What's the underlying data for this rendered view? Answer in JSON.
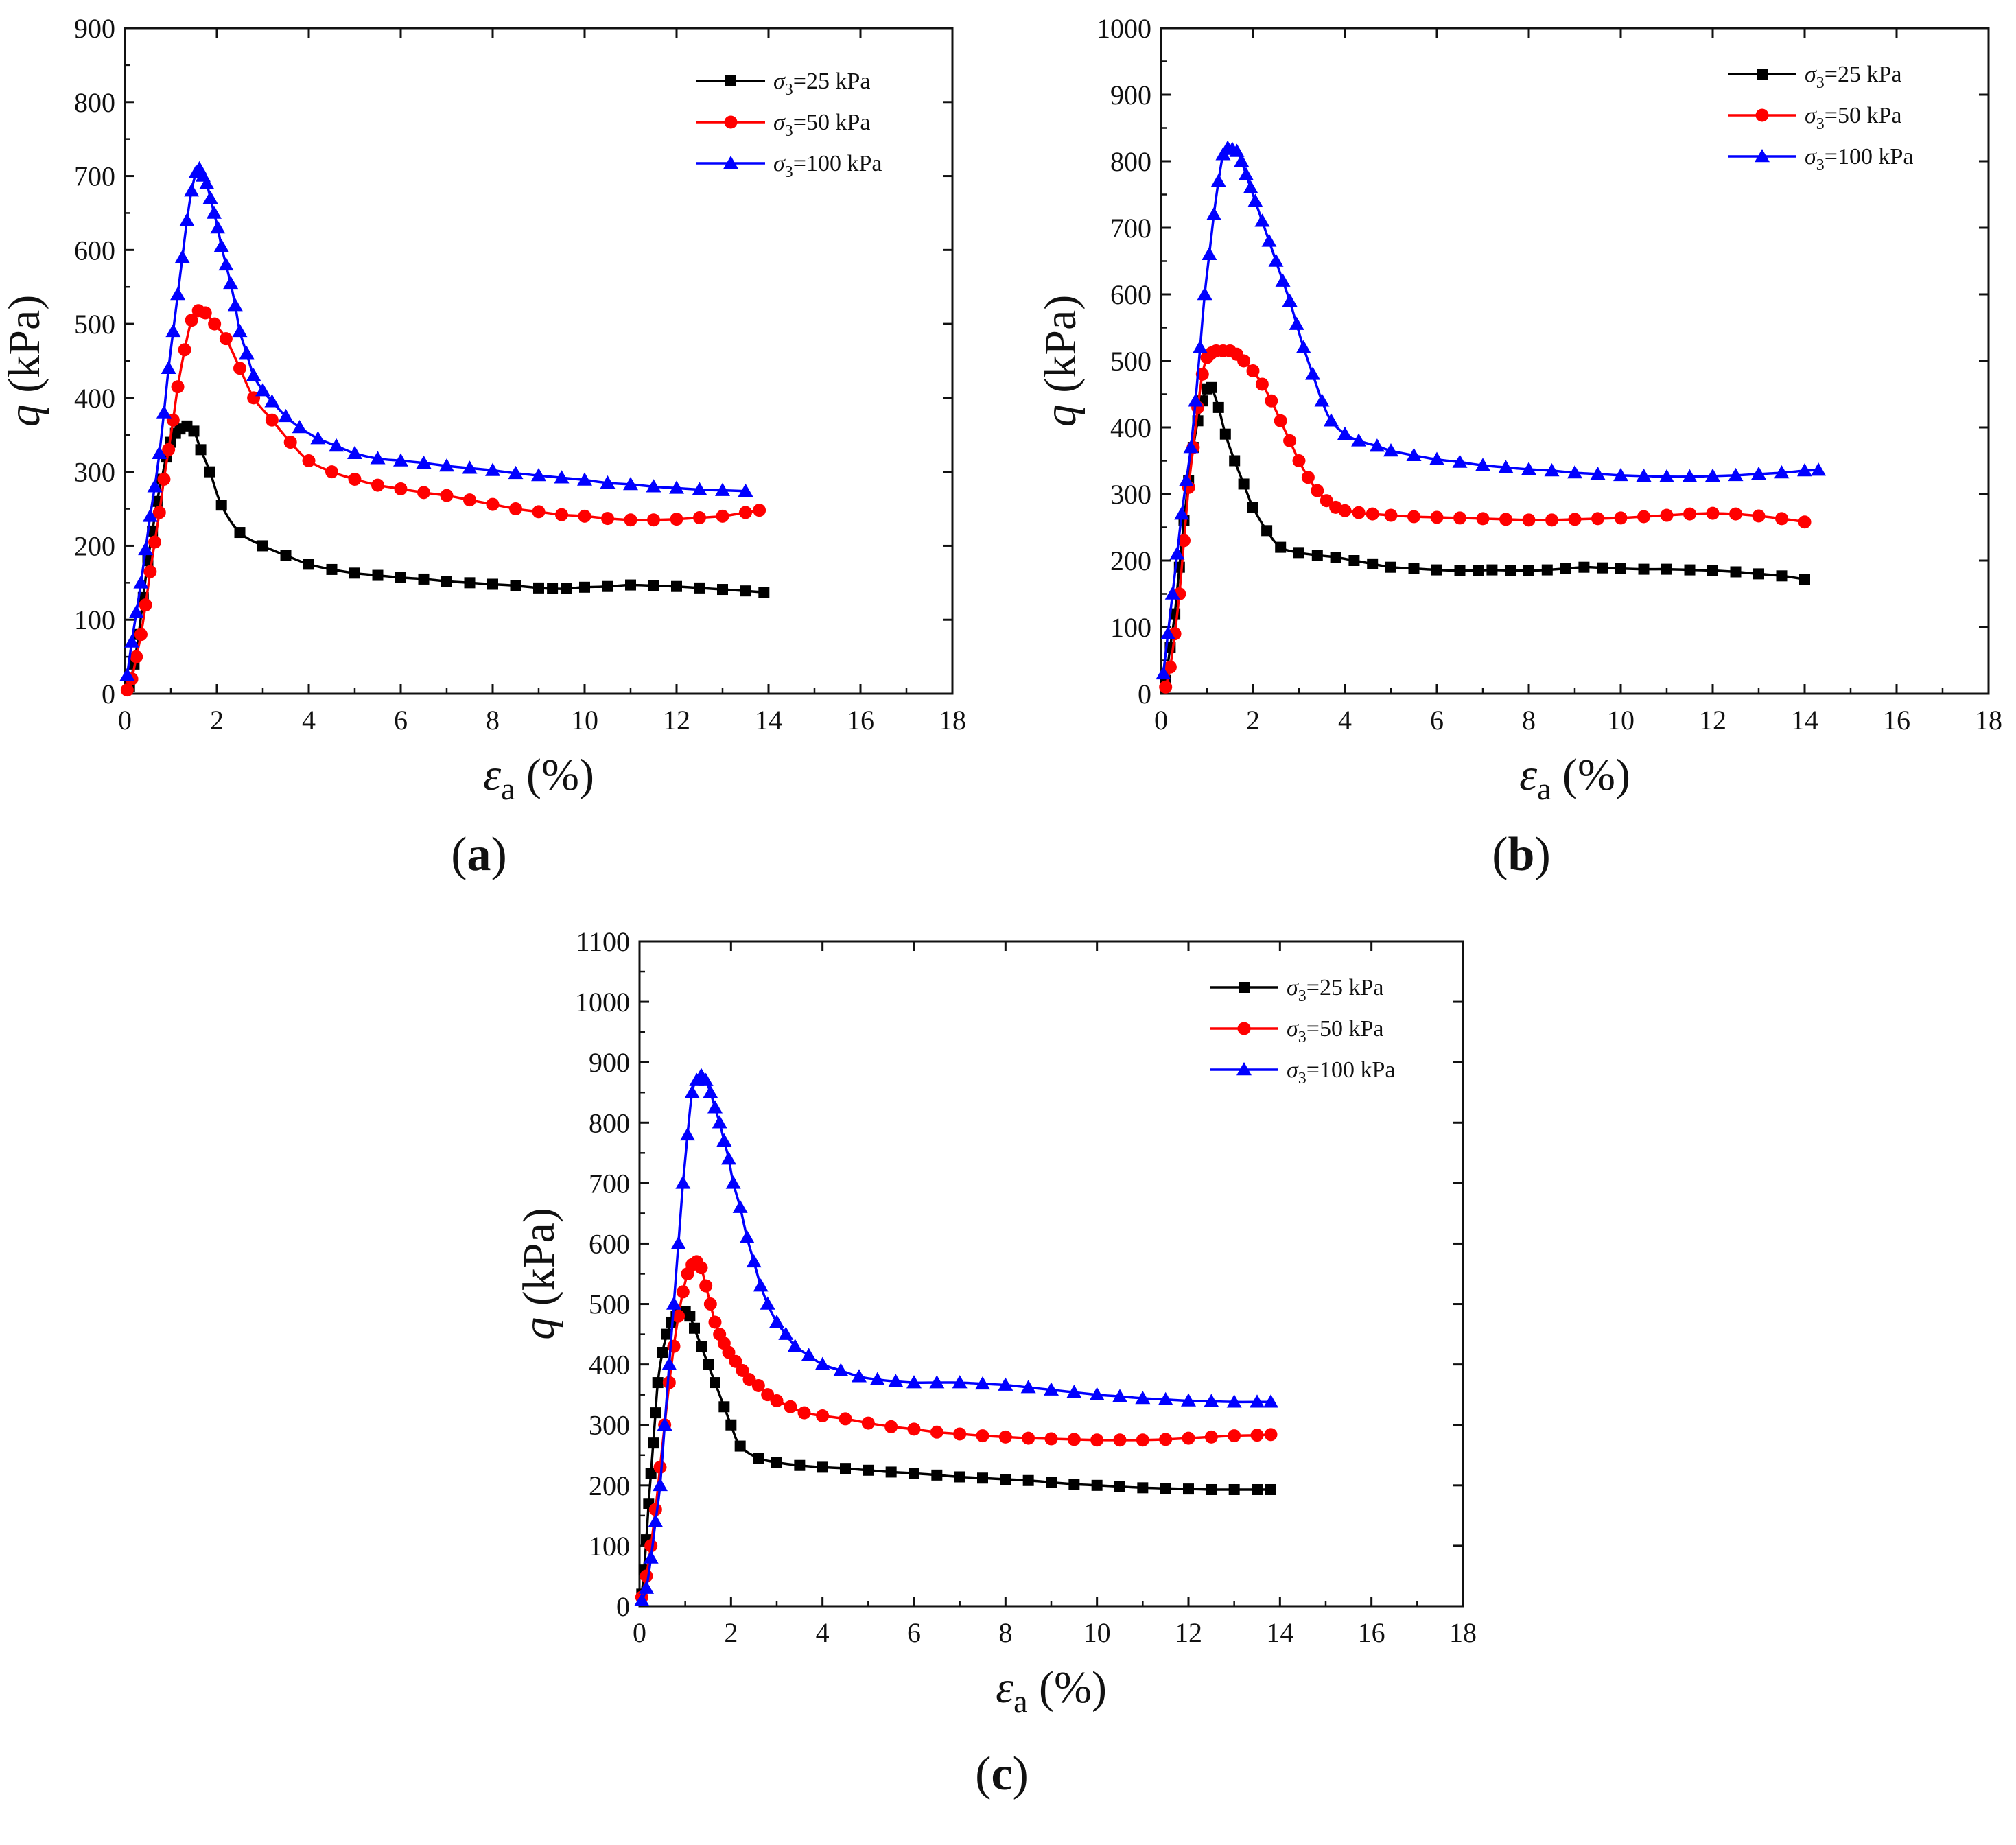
{
  "chart_data": [
    {
      "type": "line",
      "panel_label": "(a)",
      "panel_letter": "a",
      "xlabel_symbol": "ε",
      "xlabel_subscript": "a",
      "xlabel_unit": "(%)",
      "ylabel_symbol": "q",
      "ylabel_unit": "(kPa)",
      "xlim": [
        0,
        18
      ],
      "ylim": [
        0,
        900
      ],
      "xticks": [
        0,
        2,
        4,
        6,
        8,
        10,
        12,
        14,
        16,
        18
      ],
      "yticks": [
        0,
        100,
        200,
        300,
        400,
        500,
        600,
        700,
        800,
        900
      ],
      "legend_position": "top-right",
      "series": [
        {
          "name": "σ3=25 kPa",
          "prefix": "σ",
          "sub": "3",
          "suffix": "=25 kPa",
          "color": "#000000",
          "marker": "square",
          "x": [
            0.1,
            0.2,
            0.3,
            0.4,
            0.5,
            0.6,
            0.7,
            0.8,
            0.9,
            1.0,
            1.1,
            1.2,
            1.35,
            1.5,
            1.65,
            1.85,
            2.1,
            2.5,
            3.0,
            3.5,
            4.0,
            4.5,
            5.0,
            5.5,
            6.0,
            6.5,
            7.0,
            7.5,
            8.0,
            8.5,
            9.0,
            9.3,
            9.6,
            10.0,
            10.5,
            11.0,
            11.5,
            12.0,
            12.5,
            13.0,
            13.5,
            13.9
          ],
          "y": [
            10,
            40,
            80,
            130,
            180,
            220,
            260,
            290,
            320,
            340,
            352,
            358,
            362,
            355,
            330,
            300,
            255,
            218,
            200,
            187,
            175,
            168,
            163,
            160,
            157,
            155,
            152,
            150,
            148,
            146,
            143,
            142,
            142,
            144,
            145,
            147,
            146,
            145,
            143,
            141,
            139,
            137
          ]
        },
        {
          "name": "σ3=50 kPa",
          "prefix": "σ",
          "sub": "3",
          "suffix": "=50 kPa",
          "color": "#ff0000",
          "marker": "circle",
          "x": [
            0.05,
            0.15,
            0.25,
            0.35,
            0.45,
            0.55,
            0.65,
            0.75,
            0.85,
            0.95,
            1.05,
            1.15,
            1.3,
            1.45,
            1.6,
            1.75,
            1.95,
            2.2,
            2.5,
            2.8,
            3.2,
            3.6,
            4.0,
            4.5,
            5.0,
            5.5,
            6.0,
            6.5,
            7.0,
            7.5,
            8.0,
            8.5,
            9.0,
            9.5,
            10.0,
            10.5,
            11.0,
            11.5,
            12.0,
            12.5,
            13.0,
            13.5,
            13.8
          ],
          "y": [
            5,
            20,
            50,
            80,
            120,
            165,
            205,
            245,
            290,
            330,
            370,
            415,
            465,
            505,
            518,
            515,
            500,
            480,
            440,
            400,
            370,
            340,
            315,
            300,
            290,
            282,
            277,
            272,
            268,
            262,
            256,
            250,
            246,
            242,
            240,
            237,
            235,
            235,
            236,
            238,
            240,
            245,
            248
          ]
        },
        {
          "name": "σ3=100 kPa",
          "prefix": "σ",
          "sub": "3",
          "suffix": "=100 kPa",
          "color": "#0000ff",
          "marker": "triangle",
          "x": [
            0.05,
            0.15,
            0.25,
            0.35,
            0.45,
            0.55,
            0.65,
            0.75,
            0.85,
            0.95,
            1.05,
            1.15,
            1.25,
            1.35,
            1.45,
            1.55,
            1.62,
            1.7,
            1.78,
            1.86,
            1.94,
            2.02,
            2.1,
            2.2,
            2.3,
            2.4,
            2.5,
            2.65,
            2.8,
            3.0,
            3.2,
            3.5,
            3.8,
            4.2,
            4.6,
            5.0,
            5.5,
            6.0,
            6.5,
            7.0,
            7.5,
            8.0,
            8.5,
            9.0,
            9.5,
            10.0,
            10.5,
            11.0,
            11.5,
            12.0,
            12.5,
            13.0,
            13.5
          ],
          "y": [
            25,
            70,
            110,
            150,
            195,
            240,
            280,
            325,
            380,
            440,
            490,
            540,
            590,
            640,
            680,
            705,
            710,
            700,
            690,
            670,
            650,
            630,
            605,
            580,
            555,
            525,
            490,
            460,
            430,
            410,
            395,
            375,
            360,
            345,
            335,
            325,
            318,
            315,
            312,
            308,
            305,
            302,
            298,
            295,
            292,
            289,
            285,
            283,
            280,
            278,
            276,
            275,
            274
          ]
        }
      ]
    },
    {
      "type": "line",
      "panel_label": "(b)",
      "panel_letter": "b",
      "xlabel_symbol": "ε",
      "xlabel_subscript": "a",
      "xlabel_unit": "(%)",
      "ylabel_symbol": "q",
      "ylabel_unit": "(kPa)",
      "xlim": [
        0,
        18
      ],
      "ylim": [
        0,
        1000
      ],
      "xticks": [
        0,
        2,
        4,
        6,
        8,
        10,
        12,
        14,
        16,
        18
      ],
      "yticks": [
        0,
        100,
        200,
        300,
        400,
        500,
        600,
        700,
        800,
        900,
        1000
      ],
      "legend_position": "top-right",
      "series": [
        {
          "name": "σ3=25 kPa",
          "prefix": "σ",
          "sub": "3",
          "suffix": "=25 kPa",
          "color": "#000000",
          "marker": "square",
          "x": [
            0.1,
            0.2,
            0.3,
            0.4,
            0.5,
            0.6,
            0.7,
            0.8,
            0.9,
            1.0,
            1.1,
            1.25,
            1.4,
            1.6,
            1.8,
            2.0,
            2.3,
            2.6,
            3.0,
            3.4,
            3.8,
            4.2,
            4.6,
            5.0,
            5.5,
            6.0,
            6.5,
            6.9,
            7.2,
            7.6,
            8.0,
            8.4,
            8.8,
            9.2,
            9.6,
            10.0,
            10.5,
            11.0,
            11.5,
            12.0,
            12.5,
            13.0,
            13.5,
            14.0
          ],
          "y": [
            20,
            70,
            120,
            190,
            260,
            320,
            370,
            410,
            440,
            458,
            460,
            430,
            390,
            350,
            315,
            280,
            245,
            220,
            212,
            208,
            205,
            200,
            195,
            190,
            188,
            186,
            185,
            185,
            186,
            185,
            185,
            186,
            188,
            190,
            189,
            188,
            187,
            187,
            186,
            185,
            183,
            180,
            177,
            172
          ]
        },
        {
          "name": "σ3=50 kPa",
          "prefix": "σ",
          "sub": "3",
          "suffix": "=50 kPa",
          "color": "#ff0000",
          "marker": "circle",
          "x": [
            0.1,
            0.2,
            0.3,
            0.4,
            0.5,
            0.6,
            0.7,
            0.8,
            0.9,
            1.0,
            1.1,
            1.2,
            1.35,
            1.5,
            1.65,
            1.8,
            2.0,
            2.2,
            2.4,
            2.6,
            2.8,
            3.0,
            3.2,
            3.4,
            3.6,
            3.8,
            4.0,
            4.3,
            4.6,
            5.0,
            5.5,
            6.0,
            6.5,
            7.0,
            7.5,
            8.0,
            8.5,
            9.0,
            9.5,
            10.0,
            10.5,
            11.0,
            11.5,
            12.0,
            12.5,
            13.0,
            13.5,
            14.0
          ],
          "y": [
            10,
            40,
            90,
            150,
            230,
            310,
            370,
            430,
            480,
            505,
            512,
            515,
            515,
            515,
            510,
            500,
            485,
            465,
            440,
            410,
            380,
            350,
            325,
            305,
            290,
            280,
            275,
            272,
            270,
            268,
            266,
            265,
            264,
            263,
            262,
            261,
            261,
            262,
            263,
            264,
            266,
            268,
            270,
            271,
            270,
            267,
            263,
            258
          ]
        },
        {
          "name": "σ3=100 kPa",
          "prefix": "σ",
          "sub": "3",
          "suffix": "=100 kPa",
          "color": "#0000ff",
          "marker": "triangle",
          "x": [
            0.05,
            0.15,
            0.25,
            0.35,
            0.45,
            0.55,
            0.65,
            0.75,
            0.85,
            0.95,
            1.05,
            1.15,
            1.25,
            1.35,
            1.45,
            1.55,
            1.65,
            1.75,
            1.85,
            1.95,
            2.05,
            2.2,
            2.35,
            2.5,
            2.65,
            2.8,
            2.95,
            3.1,
            3.3,
            3.5,
            3.7,
            4.0,
            4.3,
            4.7,
            5.0,
            5.5,
            6.0,
            6.5,
            7.0,
            7.5,
            8.0,
            8.5,
            9.0,
            9.5,
            10.0,
            10.5,
            11.0,
            11.5,
            12.0,
            12.5,
            13.0,
            13.5,
            14.0,
            14.3
          ],
          "y": [
            30,
            90,
            150,
            210,
            270,
            320,
            370,
            440,
            520,
            600,
            660,
            720,
            770,
            810,
            820,
            818,
            815,
            800,
            780,
            760,
            740,
            710,
            680,
            650,
            620,
            590,
            555,
            520,
            480,
            440,
            410,
            390,
            380,
            372,
            365,
            358,
            352,
            348,
            343,
            340,
            337,
            335,
            332,
            330,
            328,
            327,
            326,
            326,
            327,
            328,
            330,
            332,
            335,
            336
          ]
        }
      ]
    },
    {
      "type": "line",
      "panel_label": "(c)",
      "panel_letter": "c",
      "xlabel_symbol": "ε",
      "xlabel_subscript": "a",
      "xlabel_unit": "(%)",
      "ylabel_symbol": "q",
      "ylabel_unit": "(kPa)",
      "xlim": [
        0,
        18
      ],
      "ylim": [
        0,
        1100
      ],
      "xticks": [
        0,
        2,
        4,
        6,
        8,
        10,
        12,
        14,
        16,
        18
      ],
      "yticks": [
        0,
        100,
        200,
        300,
        400,
        500,
        600,
        700,
        800,
        900,
        1000,
        1100
      ],
      "legend_position": "top-right",
      "series": [
        {
          "name": "σ3=25 kPa",
          "prefix": "σ",
          "sub": "3",
          "suffix": "=25 kPa",
          "color": "#000000",
          "marker": "square",
          "x": [
            0.05,
            0.1,
            0.15,
            0.2,
            0.25,
            0.3,
            0.35,
            0.4,
            0.5,
            0.6,
            0.7,
            0.8,
            0.9,
            1.0,
            1.1,
            1.2,
            1.35,
            1.5,
            1.65,
            1.85,
            2.0,
            2.2,
            2.6,
            3.0,
            3.5,
            4.0,
            4.5,
            5.0,
            5.5,
            6.0,
            6.5,
            7.0,
            7.5,
            8.0,
            8.5,
            9.0,
            9.5,
            10.0,
            10.5,
            11.0,
            11.5,
            12.0,
            12.5,
            13.0,
            13.5,
            13.8
          ],
          "y": [
            20,
            60,
            110,
            170,
            220,
            270,
            320,
            370,
            420,
            450,
            470,
            480,
            485,
            487,
            480,
            460,
            430,
            400,
            370,
            330,
            300,
            265,
            245,
            238,
            233,
            230,
            228,
            225,
            222,
            220,
            217,
            214,
            212,
            210,
            208,
            205,
            202,
            200,
            198,
            196,
            195,
            194,
            193,
            193,
            193,
            193
          ]
        },
        {
          "name": "σ3=50 kPa",
          "prefix": "σ",
          "sub": "3",
          "suffix": "=50 kPa",
          "color": "#ff0000",
          "marker": "circle",
          "x": [
            0.05,
            0.15,
            0.25,
            0.35,
            0.45,
            0.55,
            0.65,
            0.75,
            0.85,
            0.95,
            1.05,
            1.15,
            1.25,
            1.35,
            1.45,
            1.55,
            1.65,
            1.75,
            1.85,
            1.95,
            2.1,
            2.25,
            2.4,
            2.6,
            2.8,
            3.0,
            3.3,
            3.6,
            4.0,
            4.5,
            5.0,
            5.5,
            6.0,
            6.5,
            7.0,
            7.5,
            8.0,
            8.5,
            9.0,
            9.5,
            10.0,
            10.5,
            11.0,
            11.5,
            12.0,
            12.5,
            13.0,
            13.5,
            13.8
          ],
          "y": [
            15,
            50,
            100,
            160,
            230,
            300,
            370,
            430,
            480,
            520,
            550,
            565,
            570,
            560,
            530,
            500,
            470,
            450,
            435,
            420,
            405,
            390,
            375,
            365,
            350,
            340,
            330,
            320,
            315,
            310,
            303,
            297,
            293,
            288,
            285,
            282,
            280,
            278,
            277,
            276,
            275,
            275,
            275,
            276,
            278,
            280,
            282,
            283,
            284
          ]
        },
        {
          "name": "σ3=100 kPa",
          "prefix": "σ",
          "sub": "3",
          "suffix": "=100 kPa",
          "color": "#0000ff",
          "marker": "triangle",
          "x": [
            0.05,
            0.15,
            0.25,
            0.35,
            0.45,
            0.55,
            0.65,
            0.75,
            0.85,
            0.95,
            1.05,
            1.15,
            1.25,
            1.35,
            1.45,
            1.55,
            1.65,
            1.75,
            1.85,
            1.95,
            2.05,
            2.2,
            2.35,
            2.5,
            2.65,
            2.8,
            3.0,
            3.2,
            3.4,
            3.7,
            4.0,
            4.4,
            4.8,
            5.2,
            5.6,
            6.0,
            6.5,
            7.0,
            7.5,
            8.0,
            8.5,
            9.0,
            9.5,
            10.0,
            10.5,
            11.0,
            11.5,
            12.0,
            12.5,
            13.0,
            13.5,
            13.8
          ],
          "y": [
            10,
            30,
            80,
            140,
            200,
            300,
            400,
            500,
            600,
            700,
            780,
            850,
            870,
            878,
            870,
            850,
            825,
            800,
            770,
            740,
            700,
            660,
            610,
            570,
            530,
            500,
            470,
            450,
            430,
            415,
            400,
            390,
            380,
            375,
            372,
            370,
            370,
            370,
            368,
            366,
            362,
            358,
            354,
            350,
            347,
            344,
            342,
            340,
            339,
            338,
            338,
            338
          ]
        }
      ]
    }
  ]
}
